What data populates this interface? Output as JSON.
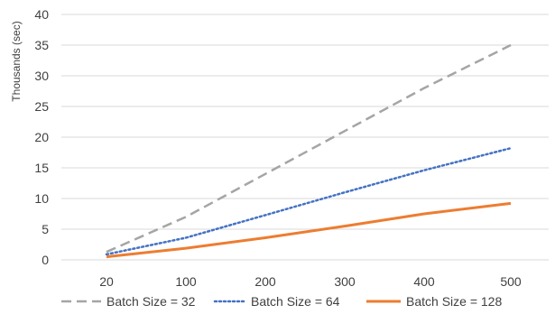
{
  "chart_data": {
    "type": "line",
    "title": "",
    "xlabel": "",
    "ylabel": "Thousands (sec)",
    "x": [
      20,
      100,
      200,
      300,
      400,
      500
    ],
    "ylim": [
      0,
      40
    ],
    "yticks": [
      0,
      5,
      10,
      15,
      20,
      25,
      30,
      35,
      40
    ],
    "grid": true,
    "legend_position": "bottom",
    "series": [
      {
        "name": "Batch Size = 32",
        "values": [
          1.3,
          7.0,
          14.0,
          21.0,
          28.0,
          35.0
        ],
        "color": "#a5a5a5",
        "style": "dashed"
      },
      {
        "name": "Batch Size = 64",
        "values": [
          0.9,
          3.6,
          7.3,
          11.0,
          14.6,
          18.2
        ],
        "color": "#4472c4",
        "style": "dotted"
      },
      {
        "name": "Batch Size = 128",
        "values": [
          0.5,
          1.9,
          3.6,
          5.5,
          7.5,
          9.2
        ],
        "color": "#ed7d31",
        "style": "solid"
      }
    ]
  }
}
